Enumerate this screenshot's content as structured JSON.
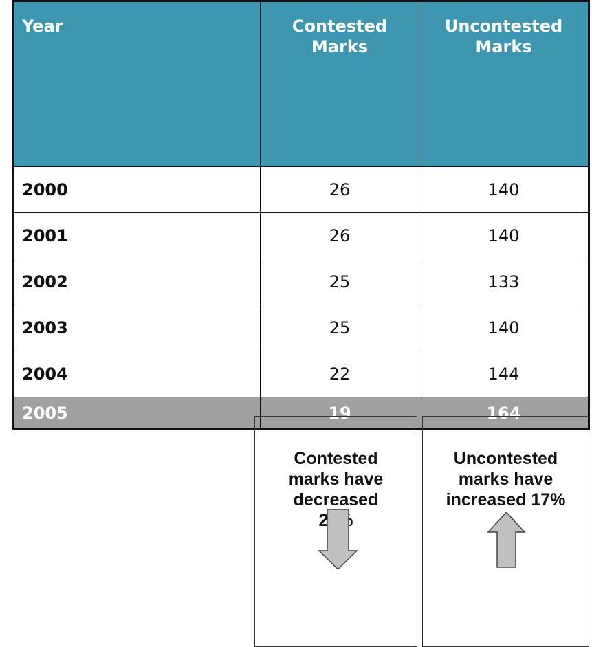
{
  "table": {
    "header": [
      "Year",
      "Contested Marks",
      "Uncontested Marks"
    ],
    "rows": [
      [
        "2000",
        26,
        140
      ],
      [
        "2001",
        26,
        140
      ],
      [
        "2002",
        25,
        133
      ],
      [
        "2003",
        25,
        140
      ],
      [
        "2004",
        22,
        144
      ],
      [
        "2005",
        19,
        164
      ]
    ]
  },
  "notes": [
    "Contested marks have decreased 27%",
    "Uncontested marks have increased 17%"
  ]
}
